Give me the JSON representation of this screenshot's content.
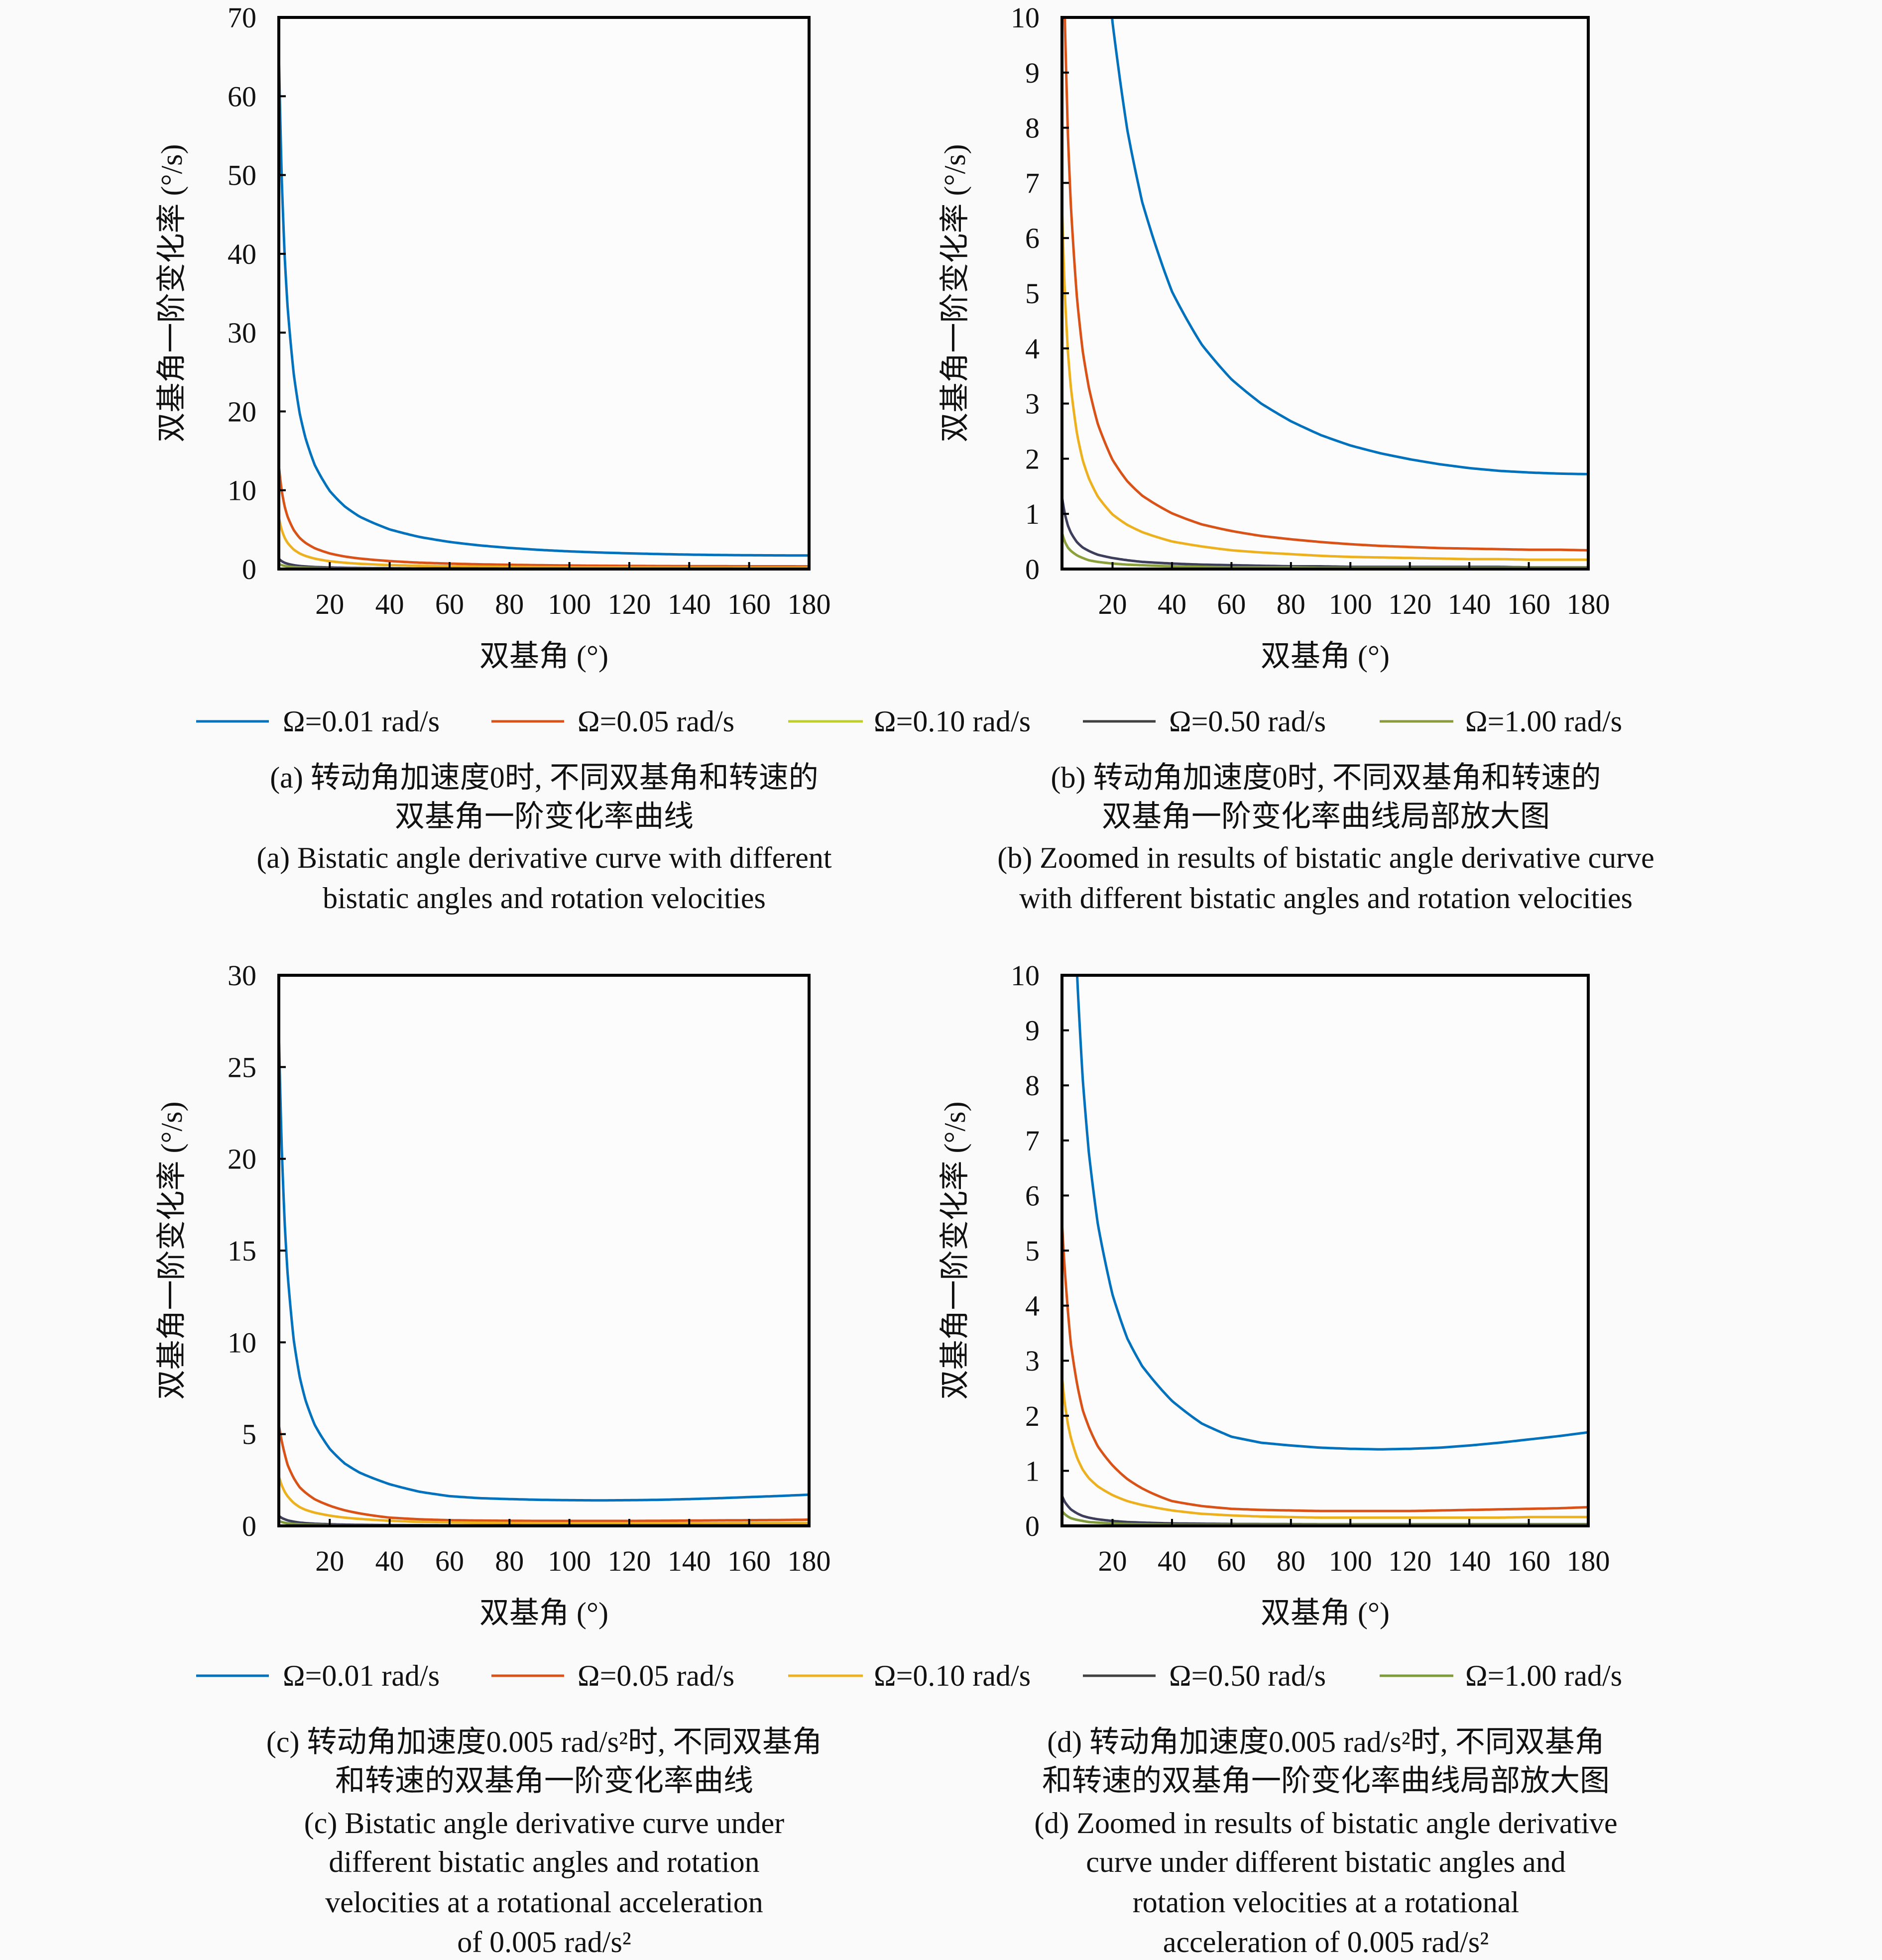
{
  "legend": {
    "top": {
      "items": [
        {
          "label": "Ω=0.01 rad/s",
          "color": "#0072BD"
        },
        {
          "label": "Ω=0.05 rad/s",
          "color": "#D95319"
        },
        {
          "label": "Ω=0.10 rad/s",
          "color": "#BFCF2A"
        },
        {
          "label": "Ω=0.50 rad/s",
          "color": "#404040"
        },
        {
          "label": "Ω=1.00 rad/s",
          "color": "#8A9A3C"
        }
      ]
    },
    "bottom": {
      "items": [
        {
          "label": "Ω=0.01 rad/s",
          "color": "#0072BD"
        },
        {
          "label": "Ω=0.05 rad/s",
          "color": "#D95319"
        },
        {
          "label": "Ω=0.10 rad/s",
          "color": "#EDB120"
        },
        {
          "label": "Ω=0.50 rad/s",
          "color": "#404040"
        },
        {
          "label": "Ω=1.00 rad/s",
          "color": "#7E9A3A"
        }
      ]
    }
  },
  "captions": {
    "a": {
      "zh": [
        "(a) 转动角加速度0时, 不同双基角和转速的",
        "双基角一阶变化率曲线"
      ],
      "en": [
        "(a) Bistatic angle derivative curve with different",
        "bistatic angles and rotation velocities"
      ]
    },
    "b": {
      "zh": [
        "(b) 转动角加速度0时, 不同双基角和转速的",
        "双基角一阶变化率曲线局部放大图"
      ],
      "en": [
        "(b) Zoomed in results of bistatic angle derivative curve",
        "with different bistatic angles and rotation velocities"
      ]
    },
    "c": {
      "zh": [
        "(c) 转动角加速度0.005 rad/s²时, 不同双基角",
        "和转速的双基角一阶变化率曲线"
      ],
      "en": [
        "(c) Bistatic angle derivative curve under",
        "different bistatic angles and rotation",
        "velocities at a rotational acceleration",
        "of 0.005 rad/s²"
      ]
    },
    "d": {
      "zh": [
        "(d) 转动角加速度0.005 rad/s²时, 不同双基角",
        "和转速的双基角一阶变化率曲线局部放大图"
      ],
      "en": [
        "(d) Zoomed in results of bistatic angle derivative",
        "curve under different bistatic angles and",
        "rotation velocities at a rotational",
        "acceleration of 0.005 rad/s²"
      ]
    }
  },
  "chart_data": {
    "datasets": {
      "no_accel": {
        "x": [
          3,
          4,
          5,
          6,
          8,
          10,
          12,
          15,
          20,
          25,
          30,
          40,
          50,
          60,
          70,
          80,
          90,
          100,
          110,
          120,
          130,
          140,
          150,
          160,
          170,
          180
        ],
        "series": [
          {
            "name": "Ω=0.01 rad/s",
            "color": "#0072BD",
            "values": [
              65.7,
              49.3,
              39.4,
              32.9,
              24.7,
              19.7,
              16.5,
              13.2,
              9.91,
              7.95,
              6.65,
              5.03,
              4.07,
              3.44,
              3.0,
              2.68,
              2.43,
              2.24,
              2.1,
              1.99,
              1.9,
              1.83,
              1.78,
              1.75,
              1.73,
              1.72
            ]
          },
          {
            "name": "Ω=0.05 rad/s",
            "color": "#D95319",
            "values": [
              13.14,
              9.86,
              7.88,
              6.58,
              4.94,
              3.94,
              3.3,
              2.64,
              1.98,
              1.59,
              1.33,
              1.01,
              0.81,
              0.69,
              0.6,
              0.54,
              0.49,
              0.45,
              0.42,
              0.4,
              0.38,
              0.37,
              0.36,
              0.35,
              0.35,
              0.34
            ]
          },
          {
            "name": "Ω=0.10 rad/s",
            "color": "#EDB120",
            "values": [
              6.57,
              4.93,
              3.94,
              3.29,
              2.47,
              1.97,
              1.65,
              1.32,
              0.99,
              0.8,
              0.67,
              0.5,
              0.41,
              0.34,
              0.3,
              0.27,
              0.24,
              0.22,
              0.21,
              0.2,
              0.19,
              0.18,
              0.18,
              0.17,
              0.17,
              0.17
            ]
          },
          {
            "name": "Ω=0.50 rad/s",
            "color": "#3D3D5C",
            "values": [
              1.31,
              0.99,
              0.79,
              0.66,
              0.49,
              0.39,
              0.33,
              0.26,
              0.2,
              0.16,
              0.13,
              0.1,
              0.08,
              0.07,
              0.06,
              0.05,
              0.05,
              0.04,
              0.04,
              0.04,
              0.04,
              0.04,
              0.04,
              0.03,
              0.03,
              0.03
            ]
          },
          {
            "name": "Ω=1.00 rad/s",
            "color": "#8AA03A",
            "values": [
              0.66,
              0.49,
              0.39,
              0.33,
              0.25,
              0.2,
              0.16,
              0.13,
              0.1,
              0.08,
              0.07,
              0.05,
              0.04,
              0.03,
              0.03,
              0.03,
              0.02,
              0.02,
              0.02,
              0.02,
              0.02,
              0.02,
              0.02,
              0.02,
              0.02,
              0.02
            ]
          }
        ]
      },
      "accel_0.005": {
        "x": [
          3,
          4,
          5,
          6,
          8,
          10,
          12,
          15,
          20,
          25,
          30,
          40,
          50,
          60,
          70,
          80,
          90,
          100,
          110,
          120,
          130,
          140,
          150,
          160,
          170,
          180
        ],
        "series": [
          {
            "name": "Ω=0.01 rad/s",
            "color": "#0072BD",
            "values": [
              27,
              20.5,
              16.4,
              13.6,
              10.1,
              8.1,
              6.8,
              5.5,
              4.2,
              3.4,
              2.9,
              2.27,
              1.86,
              1.62,
              1.51,
              1.46,
              1.42,
              1.4,
              1.39,
              1.4,
              1.42,
              1.46,
              1.51,
              1.57,
              1.63,
              1.7
            ]
          },
          {
            "name": "Ω=0.05 rad/s",
            "color": "#D95319",
            "values": [
              5.5,
              4.6,
              3.9,
              3.3,
              2.6,
              2.1,
              1.8,
              1.45,
              1.1,
              0.85,
              0.68,
              0.45,
              0.36,
              0.31,
              0.29,
              0.28,
              0.27,
              0.27,
              0.27,
              0.27,
              0.28,
              0.29,
              0.3,
              0.31,
              0.32,
              0.34
            ]
          },
          {
            "name": "Ω=0.10 rad/s",
            "color": "#EDB120",
            "values": [
              2.7,
              2.2,
              1.85,
              1.6,
              1.25,
              1.02,
              0.87,
              0.72,
              0.56,
              0.45,
              0.38,
              0.28,
              0.22,
              0.19,
              0.17,
              0.16,
              0.15,
              0.15,
              0.15,
              0.15,
              0.15,
              0.15,
              0.15,
              0.16,
              0.16,
              0.16
            ]
          },
          {
            "name": "Ω=0.50 rad/s",
            "color": "#3D3D5C",
            "values": [
              0.55,
              0.43,
              0.36,
              0.3,
              0.23,
              0.18,
              0.15,
              0.12,
              0.09,
              0.07,
              0.06,
              0.045,
              0.04,
              0.035,
              0.033,
              0.032,
              0.03,
              0.03,
              0.03,
              0.03,
              0.03,
              0.03,
              0.03,
              0.03,
              0.03,
              0.03
            ]
          },
          {
            "name": "Ω=1.00 rad/s",
            "color": "#7E9A3A",
            "values": [
              0.27,
              0.21,
              0.17,
              0.14,
              0.11,
              0.09,
              0.07,
              0.06,
              0.045,
              0.035,
              0.03,
              0.02,
              0.02,
              0.02,
              0.02,
              0.02,
              0.02,
              0.02,
              0.02,
              0.02,
              0.02,
              0.02,
              0.02,
              0.02,
              0.02,
              0.02
            ]
          }
        ]
      }
    },
    "charts": [
      {
        "panel": "a",
        "type": "line",
        "dataset": "no_accel",
        "xlabel": "双基角 (°)",
        "ylabel": "双基角一阶变化率 (°/s)",
        "xlim": [
          3,
          180
        ],
        "ylim": [
          0,
          70
        ],
        "xticks": [
          20,
          40,
          60,
          80,
          100,
          120,
          140,
          160,
          180
        ],
        "yticks": [
          0,
          10,
          20,
          30,
          40,
          50,
          60,
          70
        ],
        "grid": false
      },
      {
        "panel": "b",
        "type": "line",
        "dataset": "no_accel",
        "xlabel": "双基角 (°)",
        "ylabel": "双基角一阶变化率 (°/s)",
        "xlim": [
          3,
          180
        ],
        "ylim": [
          0,
          10
        ],
        "xticks": [
          20,
          40,
          60,
          80,
          100,
          120,
          140,
          160,
          180
        ],
        "yticks": [
          0,
          1,
          2,
          3,
          4,
          5,
          6,
          7,
          8,
          9,
          10
        ],
        "grid": false
      },
      {
        "panel": "c",
        "type": "line",
        "dataset": "accel_0.005",
        "xlabel": "双基角 (°)",
        "ylabel": "双基角一阶变化率 (°/s)",
        "xlim": [
          3,
          180
        ],
        "ylim": [
          0,
          30
        ],
        "xticks": [
          20,
          40,
          60,
          80,
          100,
          120,
          140,
          160,
          180
        ],
        "yticks": [
          0,
          5,
          10,
          15,
          20,
          25,
          30
        ],
        "grid": false
      },
      {
        "panel": "d",
        "type": "line",
        "dataset": "accel_0.005",
        "xlabel": "双基角 (°)",
        "ylabel": "双基角一阶变化率 (°/s)",
        "xlim": [
          3,
          180
        ],
        "ylim": [
          0,
          10
        ],
        "xticks": [
          20,
          40,
          60,
          80,
          100,
          120,
          140,
          160,
          180
        ],
        "yticks": [
          0,
          1,
          2,
          3,
          4,
          5,
          6,
          7,
          8,
          9,
          10
        ],
        "grid": false
      }
    ]
  }
}
